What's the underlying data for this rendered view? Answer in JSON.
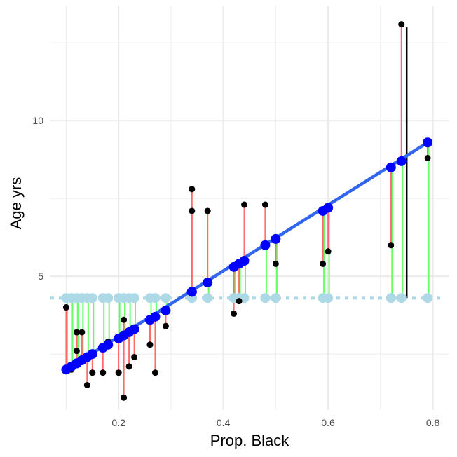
{
  "chart_data": {
    "type": "scatter",
    "xlabel": "Prop. Black",
    "ylabel": "Age yrs",
    "xlim": [
      0.07,
      0.83
    ],
    "ylim": [
      0.7,
      13.7
    ],
    "x_ticks": [
      0.2,
      0.4,
      0.6,
      0.8
    ],
    "x_tick_labels": [
      "0.2",
      "0.4",
      "0.6",
      "0.8"
    ],
    "y_ticks": [
      5,
      10
    ],
    "y_tick_labels": [
      "5",
      "10"
    ],
    "grid": true,
    "colors": {
      "fit_line": "#3366ee",
      "fitted_points": "#0000ff",
      "mean_line": "#add8e6",
      "mean_points": "#add8e6",
      "observed_points": "#000000",
      "residual_positive": "#ff6a6a",
      "residual_negative": "#66ff66",
      "highlight_segment": "#000000",
      "grid": "#ebebeb"
    },
    "mean_y": 4.3,
    "fit_line": {
      "x": [
        0.1,
        0.79
      ],
      "y": [
        2.0,
        9.3
      ]
    },
    "series": [
      {
        "name": "observed",
        "x": [
          0.1,
          0.11,
          0.12,
          0.12,
          0.13,
          0.14,
          0.15,
          0.17,
          0.18,
          0.2,
          0.21,
          0.21,
          0.22,
          0.23,
          0.26,
          0.27,
          0.29,
          0.34,
          0.34,
          0.37,
          0.42,
          0.43,
          0.44,
          0.48,
          0.5,
          0.59,
          0.6,
          0.72,
          0.74,
          0.79
        ],
        "y": [
          4.0,
          2.0,
          2.6,
          3.2,
          3.2,
          1.5,
          1.9,
          1.9,
          2.9,
          1.9,
          3.6,
          1.1,
          2.1,
          2.4,
          2.8,
          1.9,
          3.4,
          7.8,
          7.1,
          7.1,
          3.8,
          4.2,
          7.3,
          7.3,
          5.4,
          5.4,
          5.8,
          6.0,
          13.1,
          8.8
        ]
      },
      {
        "name": "fitted",
        "x": [
          0.1,
          0.11,
          0.12,
          0.12,
          0.13,
          0.14,
          0.15,
          0.17,
          0.18,
          0.2,
          0.21,
          0.21,
          0.22,
          0.23,
          0.26,
          0.27,
          0.29,
          0.34,
          0.34,
          0.37,
          0.42,
          0.43,
          0.44,
          0.48,
          0.5,
          0.59,
          0.6,
          0.72,
          0.74,
          0.79
        ],
        "y": [
          2.0,
          2.1,
          2.2,
          2.2,
          2.3,
          2.4,
          2.5,
          2.7,
          2.8,
          3.0,
          3.1,
          3.1,
          3.2,
          3.3,
          3.6,
          3.7,
          3.9,
          4.5,
          4.5,
          4.8,
          5.3,
          5.4,
          5.5,
          6.0,
          6.2,
          7.1,
          7.2,
          8.5,
          8.7,
          9.3
        ]
      }
    ],
    "highlight_segment": {
      "x": 0.75,
      "y": [
        4.3,
        13.0
      ]
    }
  }
}
